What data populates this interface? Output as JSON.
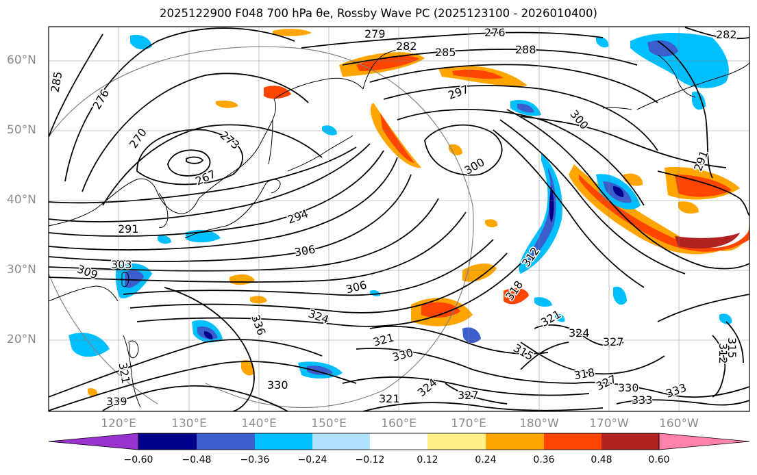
{
  "title": "2025122900 F048 700 hPa θe, Rossby Wave PC (2025123100 - 2026010400)",
  "lat_labels": [
    "60°N",
    "50°N",
    "40°N",
    "30°N",
    "20°N"
  ],
  "lon_labels": [
    "120°E",
    "130°E",
    "140°E",
    "150°E",
    "160°E",
    "170°E",
    "180°W",
    "170°W",
    "160°W"
  ],
  "contour_labels": [
    "279",
    "276",
    "282",
    "288",
    "285",
    "282",
    "285",
    "276",
    "297",
    "270",
    "273",
    "267",
    "300",
    "300",
    "291",
    "294",
    "291",
    "306",
    "303",
    "309",
    "306",
    "318",
    "312",
    "324",
    "336",
    "321",
    "324",
    "327",
    "315",
    "330",
    "318",
    "327",
    "321",
    "330",
    "330",
    "321",
    "324",
    "327",
    "333",
    "333",
    "339",
    "321",
    "315",
    "312"
  ],
  "colorbar": {
    "ticks": [
      "−0.60",
      "−0.48",
      "−0.36",
      "−0.24",
      "−0.12",
      "0.12",
      "0.24",
      "0.36",
      "0.48",
      "0.60"
    ],
    "colors": [
      "#9a32cd",
      "#00008b",
      "#3a5fcd",
      "#00bfff",
      "#b0e2ff",
      "#ffffff",
      "#fff08a",
      "#ffa500",
      "#ff4500",
      "#b22222",
      "#ff82ab"
    ]
  }
}
